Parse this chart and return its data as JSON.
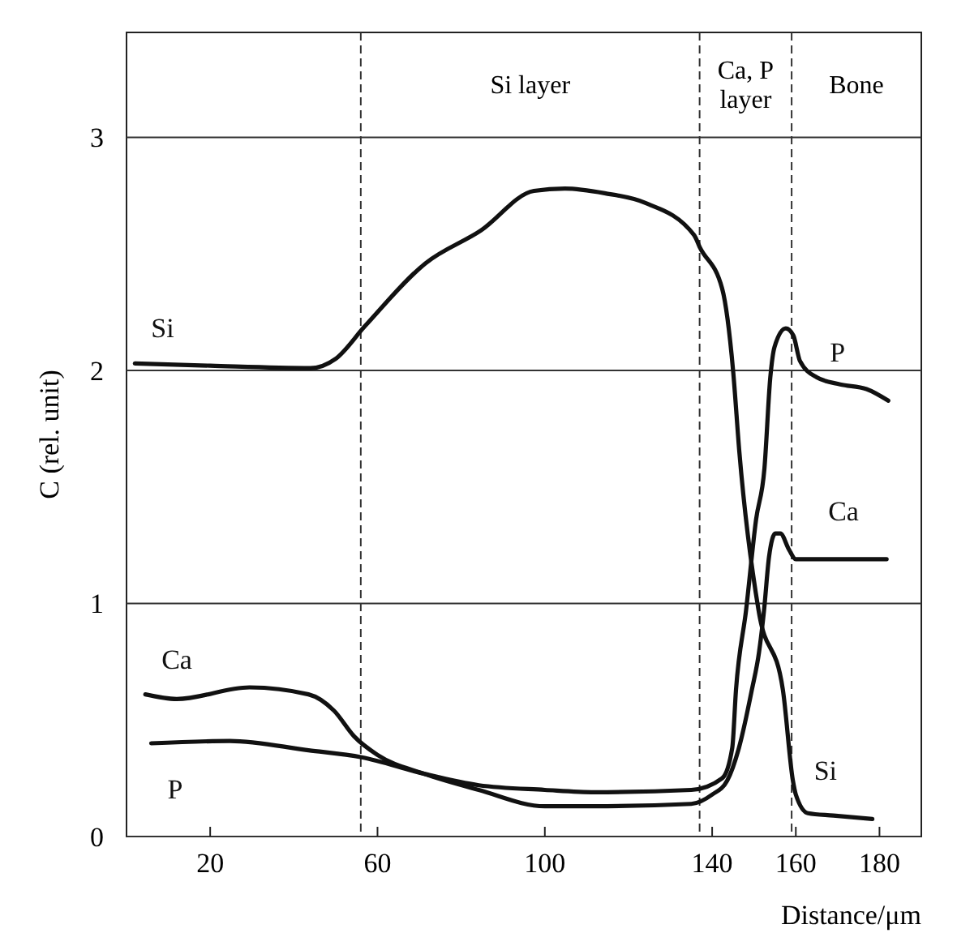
{
  "chart_data": {
    "type": "line",
    "xlabel": "Distance/μm",
    "ylabel": "C (rel. unit)",
    "xlim": [
      0,
      190
    ],
    "ylim": [
      0,
      3.45
    ],
    "xticks": [
      20,
      60,
      100,
      140,
      160,
      180
    ],
    "yticks": [
      0,
      1,
      2,
      3
    ],
    "grid": "y",
    "line_style": "solid",
    "marker": "none",
    "series": [
      {
        "name": "Si",
        "color": "#111111",
        "x": [
          2,
          20,
          44,
          50,
          57,
          71.5,
          84.7,
          97.4,
          104.8,
          114.3,
          123.8,
          135.7,
          137,
          142.4,
          145,
          146.5,
          151.1,
          156.9,
          159.3,
          160,
          162.9,
          169,
          178.3
        ],
        "values": [
          2.03,
          2.02,
          2.01,
          2.05,
          2.19,
          2.46,
          2.6,
          2.77,
          2.78,
          2.76,
          2.72,
          2.58,
          2.53,
          2.35,
          2.0,
          1.65,
          0.97,
          0.63,
          0.24,
          0.18,
          0.1,
          0.09,
          0.075
        ]
      },
      {
        "name": "Ca",
        "color": "#111111",
        "x": [
          4.5,
          12,
          29.4,
          43.5,
          49.6,
          54.4,
          60,
          71,
          84.2,
          100,
          111.9,
          135,
          140,
          143.6,
          146.4,
          149.5,
          151.2,
          152.4,
          153.6,
          155.1,
          156.3,
          158.4,
          160,
          169,
          181.7
        ],
        "values": [
          0.61,
          0.59,
          0.64,
          0.61,
          0.54,
          0.43,
          0.35,
          0.27,
          0.2,
          0.13,
          0.13,
          0.14,
          0.18,
          0.24,
          0.38,
          0.63,
          0.79,
          0.97,
          1.2,
          1.3,
          1.3,
          1.23,
          1.19,
          1.19,
          1.19
        ]
      },
      {
        "name": "P",
        "color": "#111111",
        "x": [
          5.9,
          24.7,
          43.5,
          56.2,
          71,
          84.2,
          100,
          111.9,
          135,
          142.4,
          144.8,
          145.7,
          148.1,
          150.5,
          152.5,
          153.9,
          154.9,
          157.6,
          159.4,
          161,
          165,
          170.6,
          176.9,
          182.1
        ],
        "values": [
          0.4,
          0.41,
          0.37,
          0.34,
          0.27,
          0.22,
          0.2,
          0.19,
          0.2,
          0.25,
          0.38,
          0.63,
          0.97,
          1.36,
          1.58,
          1.97,
          2.1,
          2.18,
          2.15,
          2.04,
          1.97,
          1.94,
          1.92,
          1.87
        ]
      }
    ],
    "ref_lines": [
      {
        "axis": "x",
        "value": 56,
        "line_style": "dashed"
      },
      {
        "axis": "x",
        "value": 137,
        "line_style": "dashed"
      },
      {
        "axis": "x",
        "value": 159,
        "line_style": "dashed"
      }
    ],
    "annotations": [
      "Si layer",
      "Ca, P layer",
      "Bone"
    ]
  }
}
